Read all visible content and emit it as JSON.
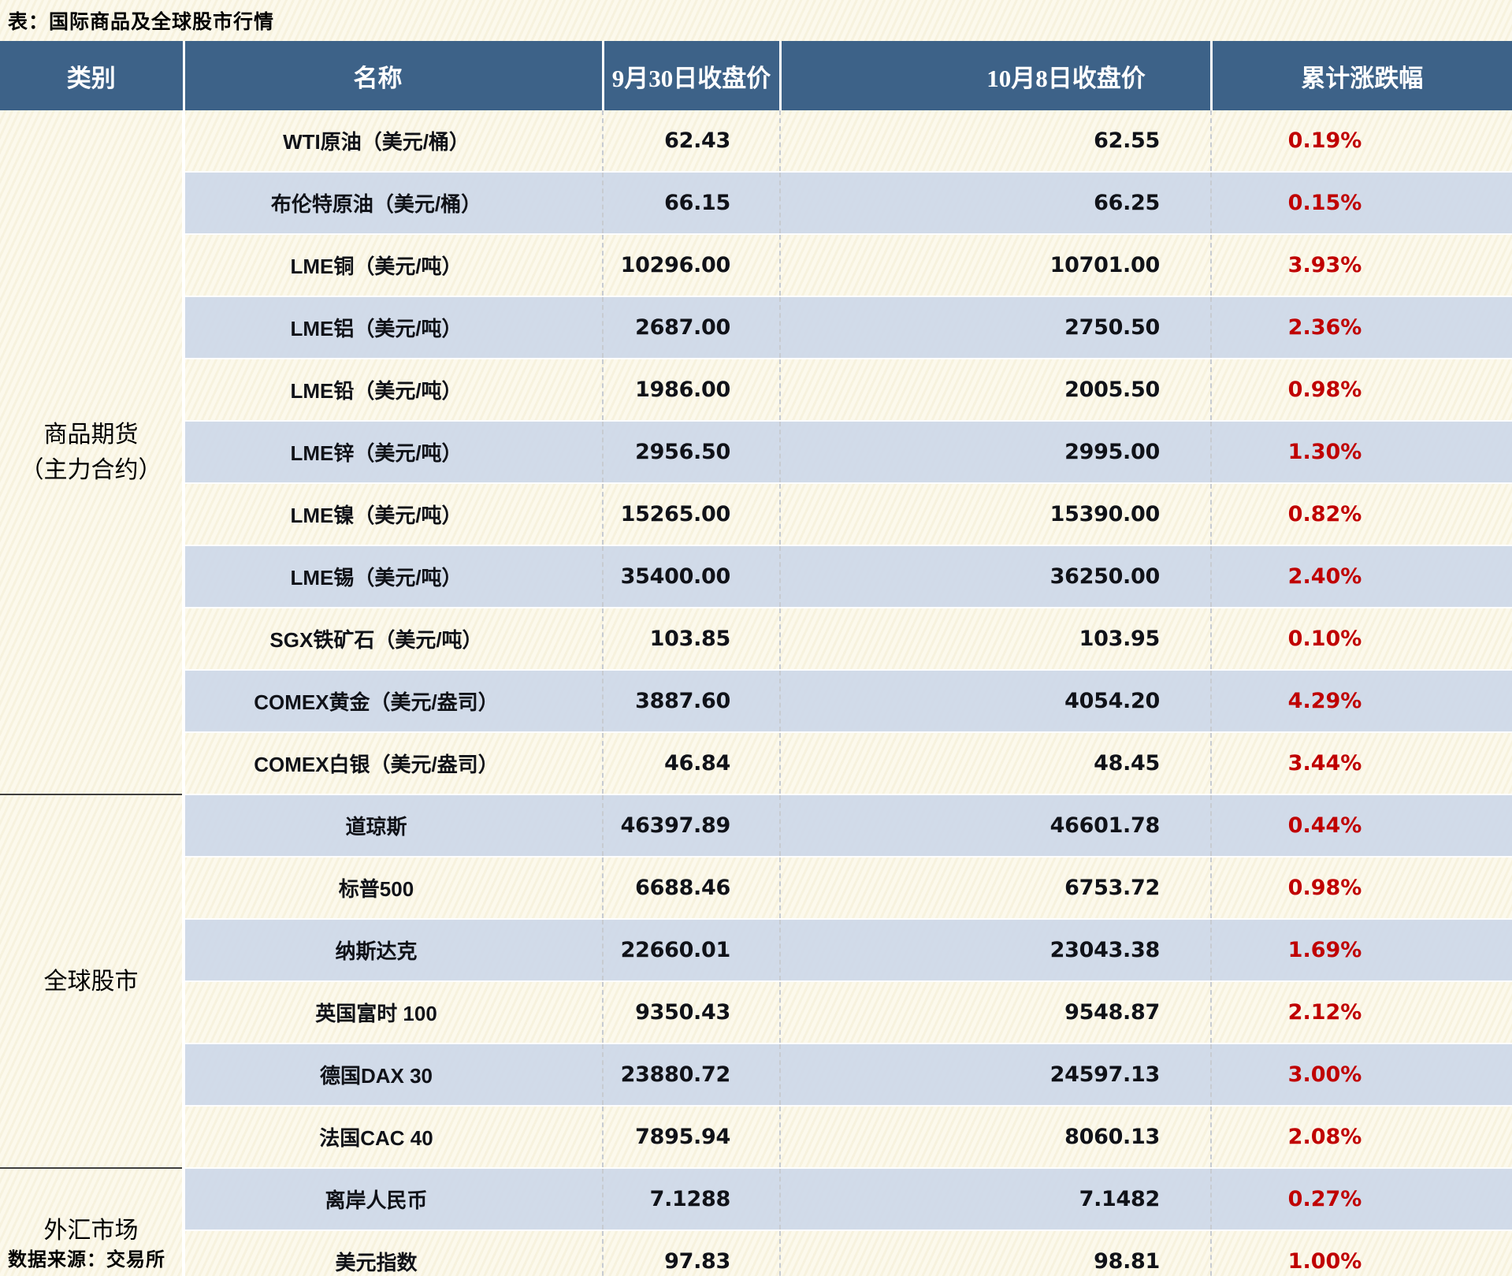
{
  "title": "表：国际商品及全球股市行情",
  "source_note": "数据来源：交易所",
  "chart_data": {
    "type": "table",
    "title": "表：国际商品及全球股市行情",
    "columns": [
      "类别",
      "名称",
      "9月30日收盘价",
      "10月8日收盘价",
      "累计涨跌幅"
    ],
    "groups": [
      {
        "category_lines": [
          "商品期货",
          "（主力合约）"
        ],
        "rows": [
          [
            "WTI原油（美元/桶）",
            "62.43",
            "62.55",
            "0.19%"
          ],
          [
            "布伦特原油（美元/桶）",
            "66.15",
            "66.25",
            "0.15%"
          ],
          [
            "LME铜（美元/吨）",
            "10296.00",
            "10701.00",
            "3.93%"
          ],
          [
            "LME铝（美元/吨）",
            "2687.00",
            "2750.50",
            "2.36%"
          ],
          [
            "LME铅（美元/吨）",
            "1986.00",
            "2005.50",
            "0.98%"
          ],
          [
            "LME锌（美元/吨）",
            "2956.50",
            "2995.00",
            "1.30%"
          ],
          [
            "LME镍（美元/吨）",
            "15265.00",
            "15390.00",
            "0.82%"
          ],
          [
            "LME锡（美元/吨）",
            "35400.00",
            "36250.00",
            "2.40%"
          ],
          [
            "SGX铁矿石（美元/吨）",
            "103.85",
            "103.95",
            "0.10%"
          ],
          [
            "COMEX黄金（美元/盎司）",
            "3887.60",
            "4054.20",
            "4.29%"
          ],
          [
            "COMEX白银（美元/盎司）",
            "46.84",
            "48.45",
            "3.44%"
          ]
        ]
      },
      {
        "category_lines": [
          "全球股市"
        ],
        "rows": [
          [
            "道琼斯",
            "46397.89",
            "46601.78",
            "0.44%"
          ],
          [
            "标普500",
            "6688.46",
            "6753.72",
            "0.98%"
          ],
          [
            "纳斯达克",
            "22660.01",
            "23043.38",
            "1.69%"
          ],
          [
            "英国富时 100",
            "9350.43",
            "9548.87",
            "2.12%"
          ],
          [
            "德国DAX 30",
            "23880.72",
            "24597.13",
            "3.00%"
          ],
          [
            "法国CAC 40",
            "7895.94",
            "8060.13",
            "2.08%"
          ]
        ]
      },
      {
        "category_lines": [
          "外汇市场"
        ],
        "rows": [
          [
            "离岸人民币",
            "7.1288",
            "7.1482",
            "0.27%"
          ],
          [
            "美元指数",
            "97.83",
            "98.81",
            "1.00%"
          ]
        ]
      }
    ],
    "layout": {
      "legend": "none",
      "grid": "zebra-striped rows",
      "stripe_first_row": "cream",
      "value_alignment": "right",
      "percent_alignment": "center"
    },
    "styles": {
      "header_bg": "#3D6288",
      "header_text": "#FFFFFF",
      "stripe_blue": "#D9E1ED",
      "page_cream": "#FCF9EC",
      "percent_red": "#C00000",
      "bottom_border_blue": "#2F5F8F",
      "group_divider": "#3F3F3F"
    }
  }
}
